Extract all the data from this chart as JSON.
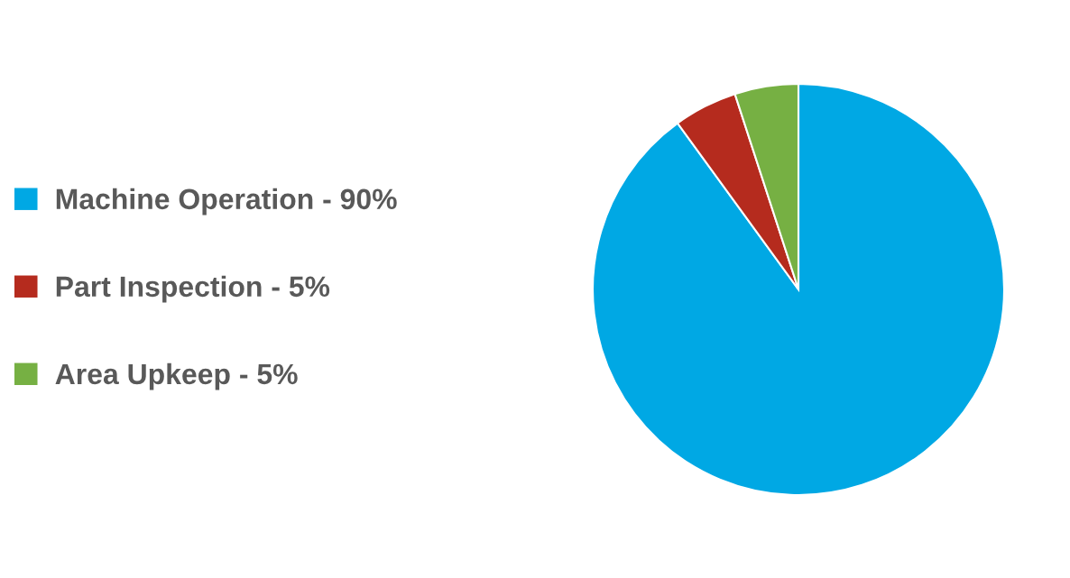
{
  "chart_data": {
    "type": "pie",
    "categories": [
      "Machine Operation - 90%",
      "Part Inspection - 5%",
      "Area Upkeep - 5%"
    ],
    "values": [
      90,
      5,
      5
    ],
    "colors": [
      "#00a8e4",
      "#b52b1e",
      "#76b043"
    ],
    "legend": "left"
  }
}
